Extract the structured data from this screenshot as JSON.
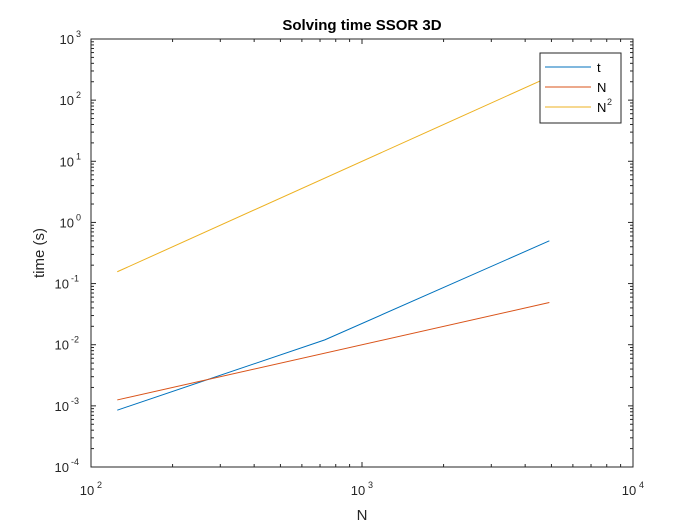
{
  "chart_data": {
    "type": "line",
    "title": "Solving time SSOR 3D",
    "xlabel": "N",
    "ylabel": "time (s)",
    "xscale": "log",
    "yscale": "log",
    "xlim": [
      100,
      10000
    ],
    "ylim": [
      0.0001,
      1000
    ],
    "xticks": [
      {
        "base": "10",
        "exp": "2",
        "value": 100
      },
      {
        "base": "10",
        "exp": "3",
        "value": 1000
      },
      {
        "base": "10",
        "exp": "4",
        "value": 10000
      }
    ],
    "yticks": [
      {
        "base": "10",
        "exp": "-4",
        "value": 0.0001
      },
      {
        "base": "10",
        "exp": "-3",
        "value": 0.001
      },
      {
        "base": "10",
        "exp": "-2",
        "value": 0.01
      },
      {
        "base": "10",
        "exp": "-1",
        "value": 0.1
      },
      {
        "base": "10",
        "exp": "0",
        "value": 1
      },
      {
        "base": "10",
        "exp": "1",
        "value": 10
      },
      {
        "base": "10",
        "exp": "2",
        "value": 100
      },
      {
        "base": "10",
        "exp": "3",
        "value": 1000
      }
    ],
    "grid": false,
    "legend_position": "top-right",
    "series": [
      {
        "name": "t",
        "label_base": "t",
        "label_sup": "",
        "color": "#0072BD",
        "x": [
          125,
          729,
          4913
        ],
        "y": [
          0.00085,
          0.012,
          0.5
        ]
      },
      {
        "name": "N",
        "label_base": "N",
        "label_sup": "",
        "color": "#D95319",
        "x": [
          125,
          4913
        ],
        "y": [
          0.00125,
          0.049
        ]
      },
      {
        "name": "N2",
        "label_base": "N",
        "label_sup": "2",
        "color": "#EDB120",
        "x": [
          125,
          4913
        ],
        "y": [
          0.156,
          241
        ]
      }
    ]
  }
}
